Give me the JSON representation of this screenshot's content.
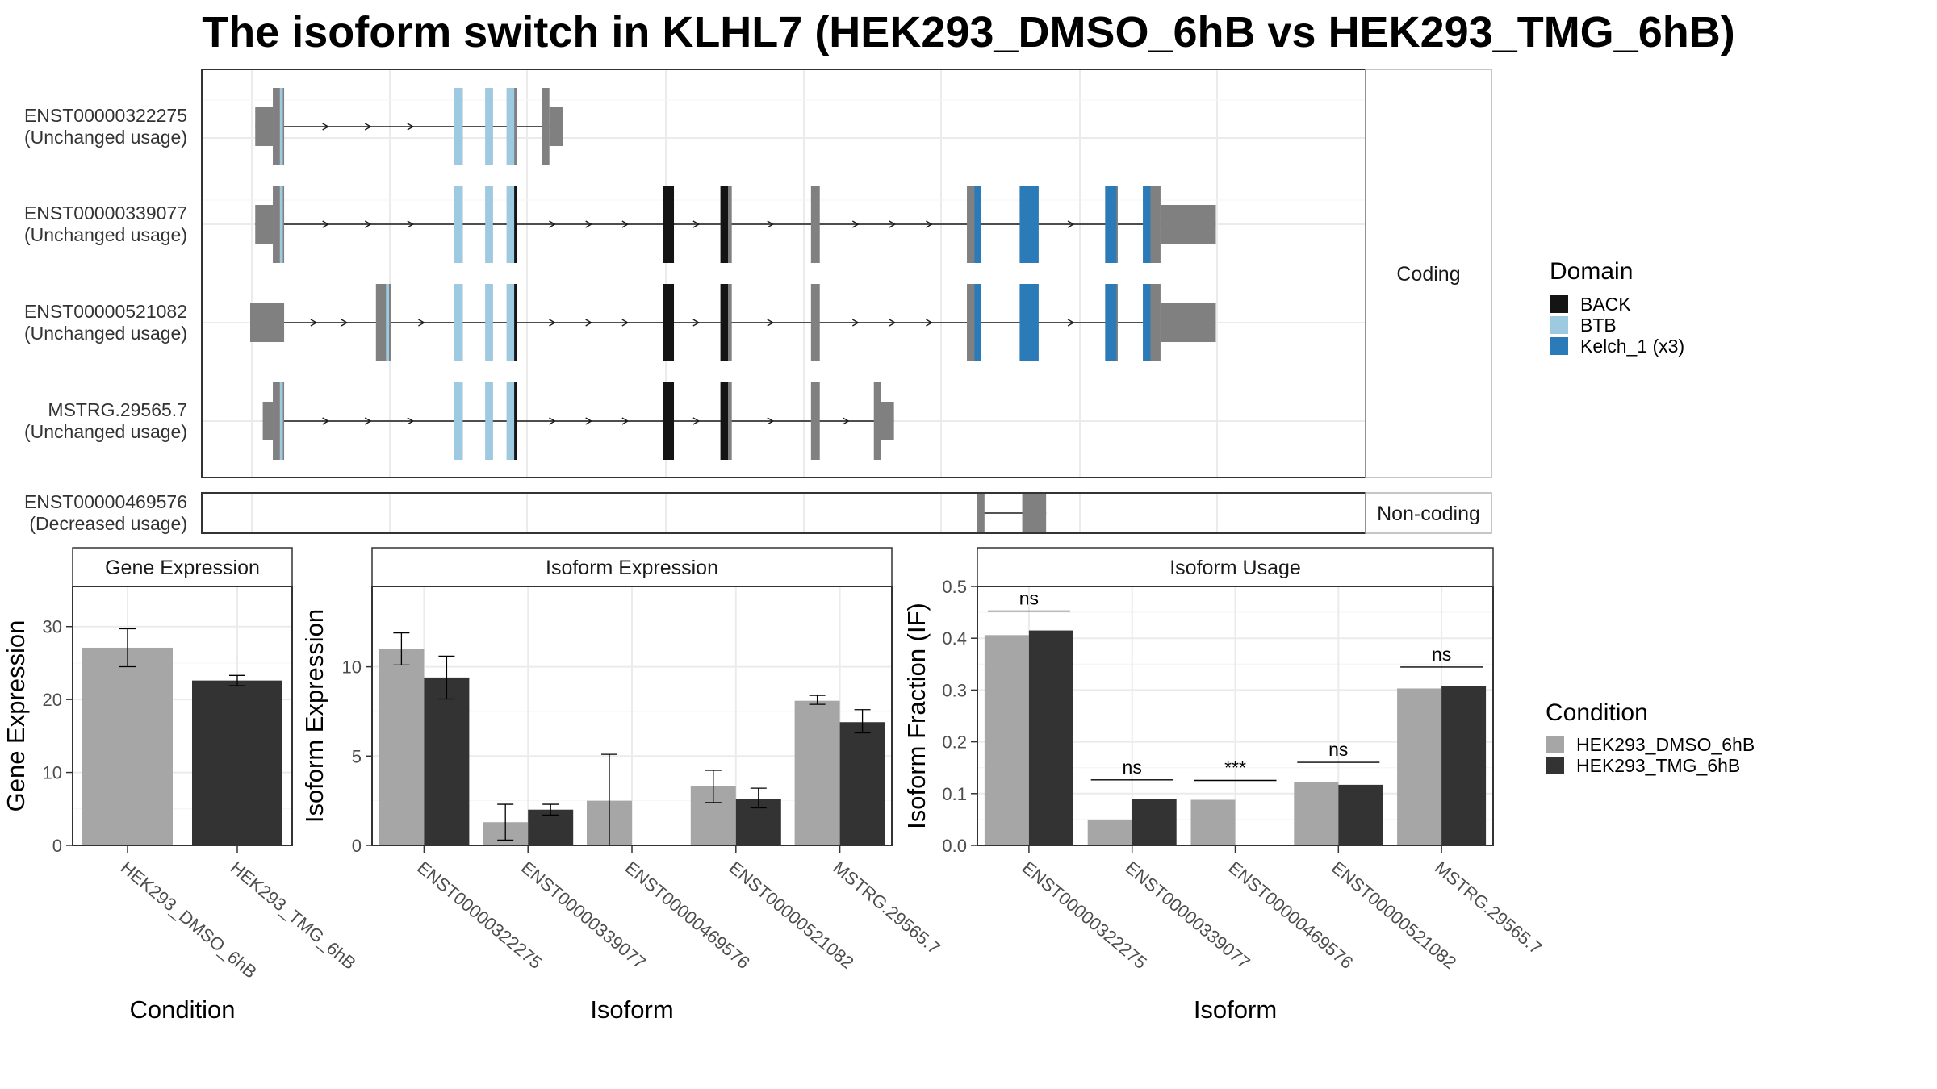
{
  "title": "The isoform switch in KLHL7 (HEK293_DMSO_6hB vs HEK293_TMG_6hB)",
  "colors": {
    "exon": "#808080",
    "BACK": "#141414",
    "BTB": "#9ecae1",
    "Kelch_1 (x3)": "#2b7bb9",
    "HEK293_DMSO_6hB": "#a6a6a6",
    "HEK293_TMG_6hB": "#333333",
    "panel_border": "#333333",
    "strip_border": "#b3b3b3",
    "grid": "#ebebeb"
  },
  "chart_data": [
    {
      "type": "diagram",
      "name": "transcript-structure",
      "strips": {
        "coding": "Coding",
        "noncoding": "Non-coding"
      },
      "x_range": [
        0,
        4230
      ],
      "transcripts": [
        {
          "id": "ENST00000322275",
          "usage": "(Unchanged usage)",
          "group": "coding",
          "exons": [
            [
              20,
              90,
              "utr"
            ],
            [
              90,
              135,
              "cds"
            ],
            [
              810,
              845,
              "cds"
            ],
            [
              935,
              965,
              "cds"
            ],
            [
              1020,
              1060,
              "cds"
            ],
            [
              1160,
              1245,
              "mixed"
            ]
          ],
          "domains": [
            [
              118,
              130,
              "BTB"
            ],
            [
              810,
              845,
              "BTB"
            ],
            [
              935,
              965,
              "BTB"
            ],
            [
              1020,
              1050,
              "BTB"
            ]
          ]
        },
        {
          "id": "ENST00000339077",
          "usage": "(Unchanged usage)",
          "group": "coding",
          "exons": [
            [
              20,
              90,
              "utr"
            ],
            [
              90,
              135,
              "cds"
            ],
            [
              810,
              845,
              "cds"
            ],
            [
              935,
              965,
              "cds"
            ],
            [
              1020,
              1060,
              "cds"
            ],
            [
              1640,
              1685,
              "cds"
            ],
            [
              1870,
              1915,
              "cds"
            ],
            [
              2230,
              2265,
              "cds"
            ],
            [
              2850,
              2905,
              "cds"
            ],
            [
              3060,
              3135,
              "cds"
            ],
            [
              3400,
              3450,
              "cds"
            ],
            [
              3550,
              3620,
              "cds"
            ],
            [
              3620,
              3840,
              "utr"
            ]
          ],
          "domains": [
            [
              118,
              130,
              "BTB"
            ],
            [
              810,
              845,
              "BTB"
            ],
            [
              935,
              965,
              "BTB"
            ],
            [
              1020,
              1050,
              "BTB"
            ],
            [
              1050,
              1060,
              "BACK"
            ],
            [
              1640,
              1685,
              "BACK"
            ],
            [
              1870,
              1900,
              "BACK"
            ],
            [
              2880,
              2905,
              "Kelch_1 (x3)"
            ],
            [
              3060,
              3135,
              "Kelch_1 (x3)"
            ],
            [
              3400,
              3445,
              "Kelch_1 (x3)"
            ],
            [
              3550,
              3580,
              "Kelch_1 (x3)"
            ]
          ]
        },
        {
          "id": "ENST00000521082",
          "usage": "(Unchanged usage)",
          "group": "coding",
          "exons": [
            [
              0,
              135,
              "utr"
            ],
            [
              500,
              560,
              "cds"
            ],
            [
              810,
              845,
              "cds"
            ],
            [
              935,
              965,
              "cds"
            ],
            [
              1020,
              1060,
              "cds"
            ],
            [
              1640,
              1685,
              "cds"
            ],
            [
              1870,
              1915,
              "cds"
            ],
            [
              2230,
              2265,
              "cds"
            ],
            [
              2850,
              2905,
              "cds"
            ],
            [
              3060,
              3135,
              "cds"
            ],
            [
              3400,
              3450,
              "cds"
            ],
            [
              3550,
              3620,
              "cds"
            ],
            [
              3620,
              3840,
              "utr"
            ]
          ],
          "domains": [
            [
              540,
              552,
              "BTB"
            ],
            [
              810,
              845,
              "BTB"
            ],
            [
              935,
              965,
              "BTB"
            ],
            [
              1020,
              1050,
              "BTB"
            ],
            [
              1050,
              1060,
              "BACK"
            ],
            [
              1640,
              1685,
              "BACK"
            ],
            [
              1870,
              1900,
              "BACK"
            ],
            [
              2880,
              2905,
              "Kelch_1 (x3)"
            ],
            [
              3060,
              3135,
              "Kelch_1 (x3)"
            ],
            [
              3400,
              3445,
              "Kelch_1 (x3)"
            ],
            [
              3550,
              3580,
              "Kelch_1 (x3)"
            ]
          ]
        },
        {
          "id": "MSTRG.29565.7",
          "usage": "(Unchanged usage)",
          "group": "coding",
          "exons": [
            [
              50,
              90,
              "utr"
            ],
            [
              90,
              135,
              "cds"
            ],
            [
              810,
              845,
              "cds"
            ],
            [
              935,
              965,
              "cds"
            ],
            [
              1020,
              1060,
              "cds"
            ],
            [
              1640,
              1685,
              "cds"
            ],
            [
              1870,
              1915,
              "cds"
            ],
            [
              2230,
              2265,
              "cds"
            ],
            [
              2480,
              2560,
              "mixed"
            ]
          ],
          "domains": [
            [
              118,
              130,
              "BTB"
            ],
            [
              810,
              845,
              "BTB"
            ],
            [
              935,
              965,
              "BTB"
            ],
            [
              1020,
              1050,
              "BTB"
            ],
            [
              1050,
              1060,
              "BACK"
            ],
            [
              1640,
              1685,
              "BACK"
            ],
            [
              1870,
              1900,
              "BACK"
            ]
          ]
        },
        {
          "id": "ENST00000469576",
          "usage": "(Decreased usage)",
          "group": "noncoding",
          "exons": [
            [
              2890,
              2920,
              "nc"
            ],
            [
              3070,
              3165,
              "nc"
            ]
          ],
          "domains": []
        }
      ],
      "legend": {
        "title": "Domain",
        "items": [
          "BACK",
          "BTB",
          "Kelch_1 (x3)"
        ]
      }
    },
    {
      "type": "bar",
      "name": "gene-expression",
      "strip": "Gene Expression",
      "xlabel": "Condition",
      "ylabel": "Gene Expression",
      "ylim": [
        0,
        35.5
      ],
      "yticks": [
        0,
        10,
        20,
        30
      ],
      "categories": [
        "HEK293_DMSO_6hB",
        "HEK293_TMG_6hB"
      ],
      "values": [
        27.1,
        22.6
      ],
      "errors": [
        [
          24.5,
          29.7
        ],
        [
          21.9,
          23.3
        ]
      ]
    },
    {
      "type": "bar",
      "name": "isoform-expression",
      "strip": "Isoform Expression",
      "xlabel": "Isoform",
      "ylabel": "Isoform Expression",
      "ylim": [
        0,
        14.5
      ],
      "yticks": [
        0,
        5,
        10
      ],
      "categories": [
        "ENST00000322275",
        "ENST00000339077",
        "ENST00000469576",
        "ENST00000521082",
        "MSTRG.29565.7"
      ],
      "series": [
        {
          "name": "HEK293_DMSO_6hB",
          "values": [
            11.0,
            1.3,
            2.5,
            3.3,
            8.1
          ],
          "errors": [
            [
              10.1,
              11.9
            ],
            [
              0.3,
              2.3
            ],
            [
              0.0,
              5.1
            ],
            [
              2.4,
              4.2
            ],
            [
              7.9,
              8.4
            ]
          ]
        },
        {
          "name": "HEK293_TMG_6hB",
          "values": [
            9.4,
            2.0,
            0.0,
            2.6,
            6.9
          ],
          "errors": [
            [
              8.2,
              10.6
            ],
            [
              1.7,
              2.3
            ],
            [
              0.0,
              0.0
            ],
            [
              2.1,
              3.2
            ],
            [
              6.3,
              7.6
            ]
          ]
        }
      ]
    },
    {
      "type": "bar",
      "name": "isoform-usage",
      "strip": "Isoform Usage",
      "xlabel": "Isoform",
      "ylabel": "Isoform Fraction (IF)",
      "ylim": [
        0,
        0.5
      ],
      "yticks": [
        0.0,
        0.1,
        0.2,
        0.3,
        0.4,
        0.5
      ],
      "categories": [
        "ENST00000322275",
        "ENST00000339077",
        "ENST00000469576",
        "ENST00000521082",
        "MSTRG.29565.7"
      ],
      "series": [
        {
          "name": "HEK293_DMSO_6hB",
          "values": [
            0.406,
            0.05,
            0.088,
            0.123,
            0.303
          ]
        },
        {
          "name": "HEK293_TMG_6hB",
          "values": [
            0.415,
            0.089,
            0.0,
            0.117,
            0.307
          ]
        }
      ],
      "significance": [
        "ns",
        "ns",
        "***",
        "ns",
        "ns"
      ]
    }
  ],
  "condition_legend": {
    "title": "Condition",
    "items": [
      "HEK293_DMSO_6hB",
      "HEK293_TMG_6hB"
    ]
  }
}
